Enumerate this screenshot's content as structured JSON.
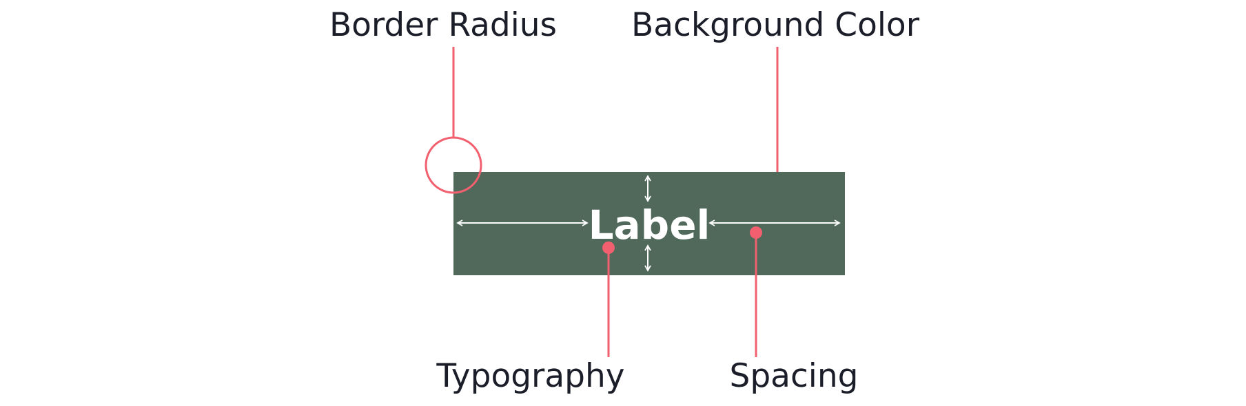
{
  "callouts": {
    "border_radius": "Border Radius",
    "background_color": "Background Color",
    "typography": "Typography",
    "spacing": "Spacing"
  },
  "button": {
    "label": "Label"
  },
  "colors": {
    "button_fill": "#50695a",
    "callout_accent": "#f2606f",
    "text": "#1b1e29",
    "arrow": "#ffffff"
  }
}
